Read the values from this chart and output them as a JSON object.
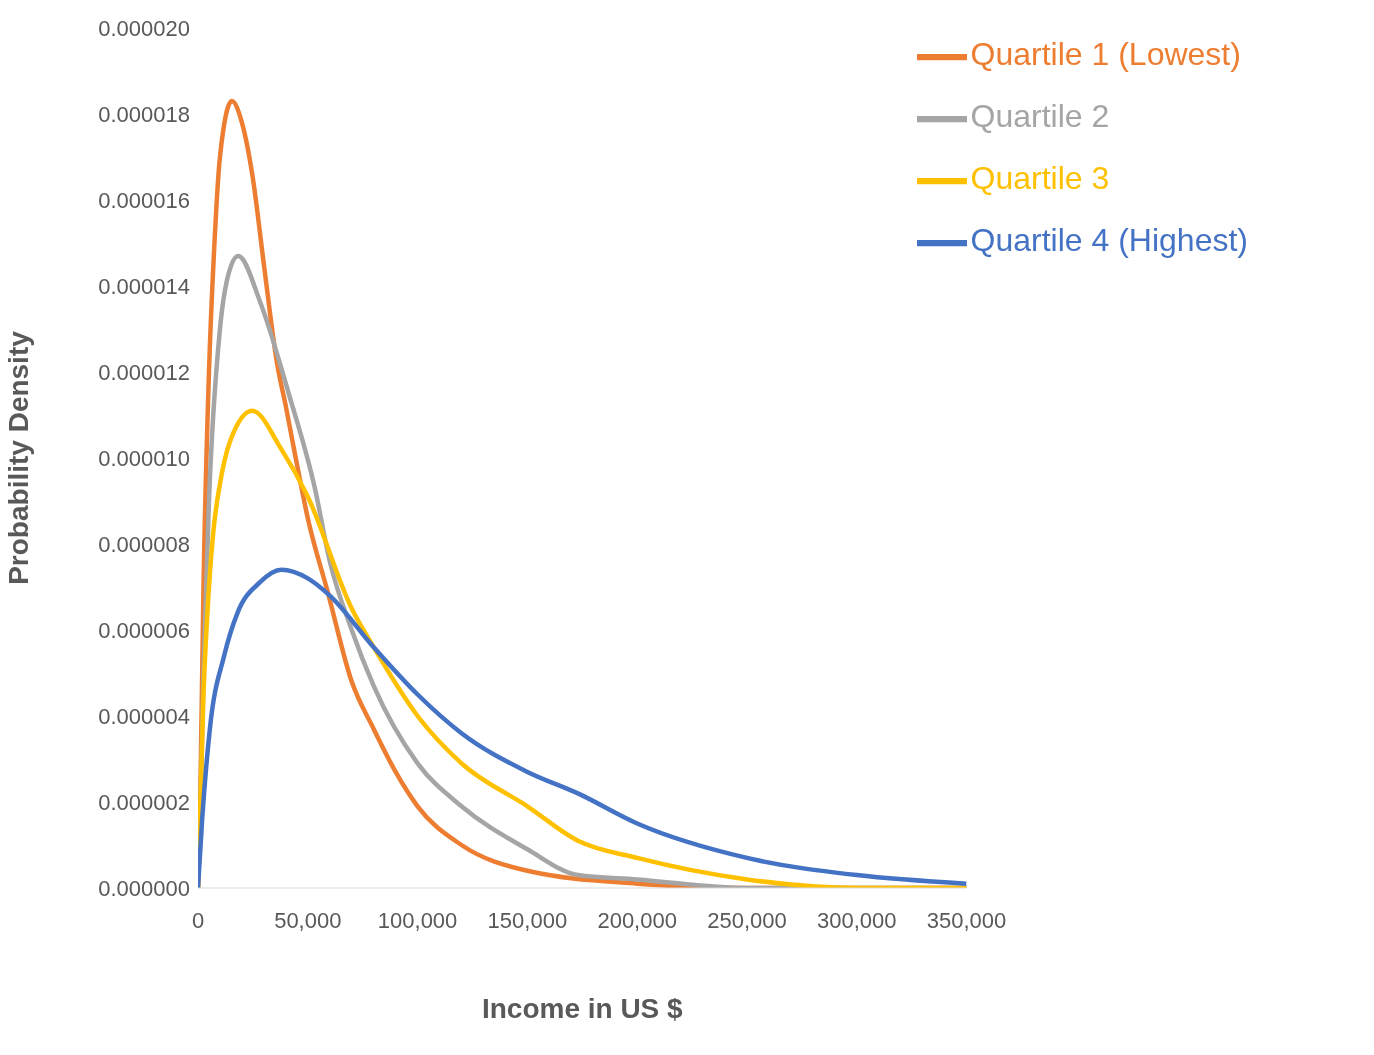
{
  "chart_data": {
    "type": "line",
    "xlabel": "Income in US $",
    "ylabel": "Probability Density",
    "xlim": [
      0,
      350000
    ],
    "xticks": [
      0,
      {
        "value": 50000,
        "label": "50,000"
      },
      {
        "value": 100000,
        "label": "100,000"
      },
      {
        "value": 150000,
        "label": "150,000"
      },
      {
        "value": 200000,
        "label": "200,000"
      },
      {
        "value": 250000,
        "label": "250,000"
      },
      {
        "value": 300000,
        "label": "300,000"
      },
      {
        "value": 350000,
        "label": "350,000"
      }
    ],
    "ylim": [
      0,
      2e-05
    ],
    "yticks": [
      {
        "value": 0,
        "label": "0.000000"
      },
      {
        "value": 2e-06,
        "label": "0.000002"
      },
      {
        "value": 4e-06,
        "label": "0.000004"
      },
      {
        "value": 6e-06,
        "label": "0.000006"
      },
      {
        "value": 8e-06,
        "label": "0.000008"
      },
      {
        "value": 1e-05,
        "label": "0.000010"
      },
      {
        "value": 1.2e-05,
        "label": "0.000012"
      },
      {
        "value": 1.4e-05,
        "label": "0.000014"
      },
      {
        "value": 1.6e-05,
        "label": "0.000016"
      },
      {
        "value": 1.8e-05,
        "label": "0.000018"
      },
      {
        "value": 2e-05,
        "label": "0.000020"
      }
    ],
    "grid": false,
    "legend": "top right",
    "marker": "none",
    "line_style": "solid",
    "series": [
      {
        "name": "Quartile 1 (Lowest)",
        "color": "#ed7d31",
        "x": [
          0,
          1000,
          2500,
          5000,
          7500,
          10000,
          15400,
          20000,
          25000,
          30000,
          36000,
          40000,
          44500,
          50000,
          59000,
          70000,
          80000,
          90000,
          100000,
          120000,
          150000,
          200000,
          250000,
          300000,
          350000
        ],
        "values": [
          0,
          2e-06,
          7e-06,
          1.2e-05,
          1.5e-05,
          1.7e-05,
          1.83e-05,
          1.78e-05,
          1.65e-05,
          1.45e-05,
          1.22e-05,
          1.12e-05,
          1e-05,
          8.6e-06,
          6.9e-06,
          4.8e-06,
          3.7e-06,
          2.7e-06,
          1.9e-06,
          1e-06,
          4e-07,
          1e-07,
          0,
          0,
          0
        ]
      },
      {
        "name": "Quartile 2",
        "color": "#a5a5a5",
        "x": [
          0,
          1000,
          2500,
          5000,
          10000,
          14000,
          18300,
          28500,
          41300,
          53200,
          60000,
          70000,
          80000,
          100000,
          120000,
          150000,
          173000,
          200000,
          250000,
          300000,
          350000
        ],
        "values": [
          0,
          1.5e-06,
          5e-06,
          9e-06,
          1.3e-05,
          1.43e-05,
          1.47e-05,
          1.36e-05,
          1.15e-05,
          9.3e-06,
          7.6e-06,
          6e-06,
          4.7e-06,
          2.9e-06,
          1.9e-06,
          9e-07,
          3e-07,
          2e-07,
          0,
          0,
          0
        ]
      },
      {
        "name": "Quartile 3",
        "color": "#ffc000",
        "x": [
          0,
          2500,
          5000,
          7000,
          10000,
          14700,
          24700,
          38000,
          50000,
          70000,
          80000,
          100000,
          120000,
          150000,
          173000,
          200000,
          250000,
          300000,
          350000
        ],
        "values": [
          0,
          4.5e-06,
          7e-06,
          8.3e-06,
          9.4e-06,
          1.04e-05,
          1.11e-05,
          1.02e-05,
          9.1e-06,
          6.5e-06,
          5.6e-06,
          4e-06,
          2.9e-06,
          1.9e-06,
          1.1e-06,
          7e-07,
          2e-07,
          0,
          0
        ]
      },
      {
        "name": "Quartile 4 (Highest)",
        "color": "#4472c4",
        "x": [
          0,
          1900,
          5400,
          11900,
          18000,
          28000,
          38000,
          50000,
          60000,
          80000,
          100000,
          120000,
          150000,
          173000,
          200000,
          250000,
          300000,
          350000
        ],
        "values": [
          0,
          1.6e-06,
          3.7e-06,
          5.4e-06,
          6.4e-06,
          7.1e-06,
          7.4e-06,
          7.2e-06,
          6.8e-06,
          5.6e-06,
          4.5e-06,
          3.6e-06,
          2.7e-06,
          2.2e-06,
          1.5e-06,
          7e-07,
          3e-07,
          1e-07
        ]
      }
    ]
  }
}
